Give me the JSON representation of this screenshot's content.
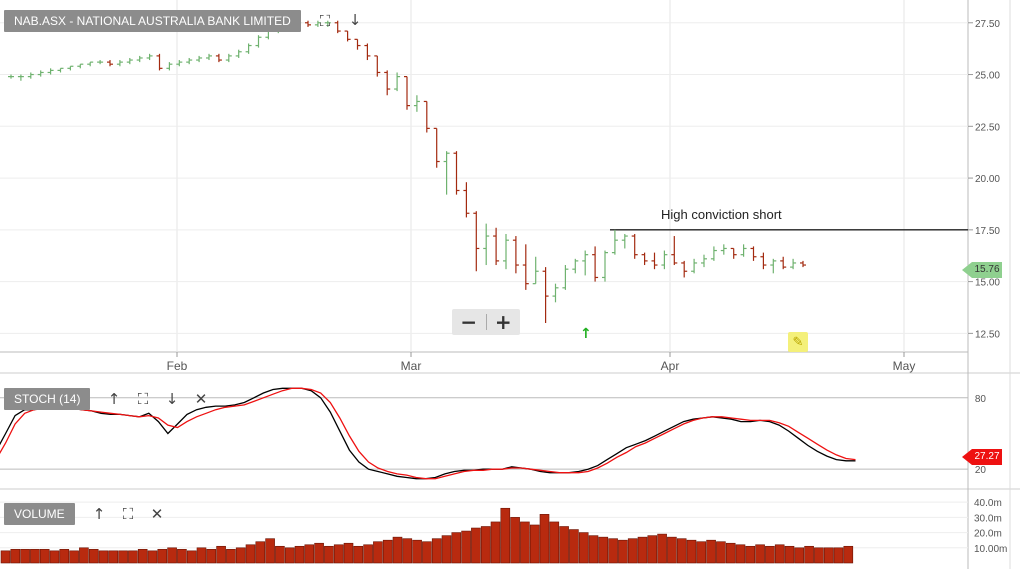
{
  "main_panel": {
    "title": "NAB.ASX - NATIONAL AUSTRALIA BANK LIMITED",
    "annotation": "High conviction short",
    "last_price_label": "15.76",
    "icons": {
      "fullscreen": "fullscreen-icon",
      "move_down": "arrow-down-icon",
      "zoom_out": "minus-icon",
      "zoom_in": "plus-icon",
      "draw": "pencil-icon",
      "signal": "arrow-up-icon"
    }
  },
  "stoch_panel": {
    "title": "STOCH (14)",
    "last_value_label": "27.27",
    "icons": {
      "move_up": "arrow-up-icon",
      "fullscreen": "fullscreen-icon",
      "move_down": "arrow-down-icon",
      "close": "close-icon"
    }
  },
  "volume_panel": {
    "title": "VOLUME",
    "icons": {
      "move_up": "arrow-up-icon",
      "fullscreen": "fullscreen-icon",
      "close": "close-icon"
    }
  },
  "colors": {
    "up": "#6fb26f",
    "down": "#a32a10",
    "stoch_k": "#000000",
    "stoch_d": "#ee1111",
    "volume": "#b82a0f",
    "label_bg": "#8c8c8c"
  },
  "chart_data": [
    {
      "type": "ohlc",
      "title": "NAB.ASX - NATIONAL AUSTRALIA BANK LIMITED",
      "x_ticks": [
        "Feb",
        "Mar",
        "Apr",
        "May"
      ],
      "y_ticks": [
        "27.50",
        "25.00",
        "22.50",
        "20.00",
        "17.50",
        "15.00",
        "12.50"
      ],
      "ylim": [
        11.6,
        28.6
      ],
      "horizontal_line": {
        "value": 17.5,
        "label": "High conviction short"
      },
      "last_value": 15.76,
      "bars": [
        {
          "o": 24.9,
          "h": 25.0,
          "l": 24.8,
          "c": 24.9
        },
        {
          "o": 24.9,
          "h": 25.0,
          "l": 24.7,
          "c": 24.9
        },
        {
          "o": 24.9,
          "h": 25.1,
          "l": 24.8,
          "c": 25.0
        },
        {
          "o": 25.0,
          "h": 25.2,
          "l": 24.9,
          "c": 25.1
        },
        {
          "o": 25.1,
          "h": 25.3,
          "l": 25.0,
          "c": 25.2
        },
        {
          "o": 25.2,
          "h": 25.3,
          "l": 25.1,
          "c": 25.3
        },
        {
          "o": 25.3,
          "h": 25.4,
          "l": 25.2,
          "c": 25.4
        },
        {
          "o": 25.4,
          "h": 25.5,
          "l": 25.3,
          "c": 25.5
        },
        {
          "o": 25.5,
          "h": 25.6,
          "l": 25.4,
          "c": 25.6
        },
        {
          "o": 25.6,
          "h": 25.7,
          "l": 25.5,
          "c": 25.6
        },
        {
          "o": 25.6,
          "h": 25.7,
          "l": 25.4,
          "c": 25.5
        },
        {
          "o": 25.5,
          "h": 25.7,
          "l": 25.4,
          "c": 25.6
        },
        {
          "o": 25.6,
          "h": 25.8,
          "l": 25.5,
          "c": 25.7
        },
        {
          "o": 25.7,
          "h": 25.9,
          "l": 25.6,
          "c": 25.8
        },
        {
          "o": 25.8,
          "h": 26.0,
          "l": 25.7,
          "c": 25.9
        },
        {
          "o": 25.9,
          "h": 26.0,
          "l": 25.2,
          "c": 25.3
        },
        {
          "o": 25.3,
          "h": 25.6,
          "l": 25.2,
          "c": 25.5
        },
        {
          "o": 25.5,
          "h": 25.7,
          "l": 25.4,
          "c": 25.6
        },
        {
          "o": 25.6,
          "h": 25.8,
          "l": 25.5,
          "c": 25.7
        },
        {
          "o": 25.7,
          "h": 25.9,
          "l": 25.6,
          "c": 25.8
        },
        {
          "o": 25.8,
          "h": 26.0,
          "l": 25.7,
          "c": 25.9
        },
        {
          "o": 25.9,
          "h": 26.0,
          "l": 25.6,
          "c": 25.7
        },
        {
          "o": 25.7,
          "h": 26.0,
          "l": 25.6,
          "c": 25.9
        },
        {
          "o": 25.9,
          "h": 26.2,
          "l": 25.8,
          "c": 26.1
        },
        {
          "o": 26.1,
          "h": 26.5,
          "l": 26.0,
          "c": 26.4
        },
        {
          "o": 26.4,
          "h": 26.9,
          "l": 26.3,
          "c": 26.8
        },
        {
          "o": 26.8,
          "h": 27.2,
          "l": 26.7,
          "c": 27.1
        },
        {
          "o": 27.1,
          "h": 27.4,
          "l": 27.0,
          "c": 27.3
        },
        {
          "o": 27.3,
          "h": 27.5,
          "l": 27.2,
          "c": 27.4
        },
        {
          "o": 27.4,
          "h": 27.6,
          "l": 27.3,
          "c": 27.5
        },
        {
          "o": 27.5,
          "h": 27.6,
          "l": 27.3,
          "c": 27.4
        },
        {
          "o": 27.4,
          "h": 27.6,
          "l": 27.3,
          "c": 27.5
        },
        {
          "o": 27.5,
          "h": 27.6,
          "l": 27.3,
          "c": 27.5
        },
        {
          "o": 27.5,
          "h": 27.6,
          "l": 27.0,
          "c": 27.1
        },
        {
          "o": 27.1,
          "h": 27.1,
          "l": 26.6,
          "c": 26.7
        },
        {
          "o": 26.7,
          "h": 26.7,
          "l": 26.2,
          "c": 26.4
        },
        {
          "o": 26.4,
          "h": 26.5,
          "l": 25.7,
          "c": 25.9
        },
        {
          "o": 25.9,
          "h": 25.9,
          "l": 24.9,
          "c": 25.1
        },
        {
          "o": 25.1,
          "h": 25.2,
          "l": 24.0,
          "c": 24.3
        },
        {
          "o": 24.3,
          "h": 25.1,
          "l": 24.2,
          "c": 24.9
        },
        {
          "o": 24.9,
          "h": 24.9,
          "l": 23.3,
          "c": 23.5
        },
        {
          "o": 23.5,
          "h": 24.0,
          "l": 23.2,
          "c": 23.7
        },
        {
          "o": 23.7,
          "h": 23.7,
          "l": 22.2,
          "c": 22.4
        },
        {
          "o": 22.4,
          "h": 22.4,
          "l": 20.5,
          "c": 20.8
        },
        {
          "o": 20.8,
          "h": 21.3,
          "l": 19.2,
          "c": 21.2
        },
        {
          "o": 21.2,
          "h": 21.3,
          "l": 19.2,
          "c": 19.4
        },
        {
          "o": 19.4,
          "h": 19.8,
          "l": 18.1,
          "c": 18.3
        },
        {
          "o": 18.3,
          "h": 18.4,
          "l": 15.5,
          "c": 16.6
        },
        {
          "o": 16.6,
          "h": 17.8,
          "l": 15.8,
          "c": 17.2
        },
        {
          "o": 17.2,
          "h": 17.6,
          "l": 15.8,
          "c": 16.0
        },
        {
          "o": 16.0,
          "h": 17.3,
          "l": 15.6,
          "c": 17.0
        },
        {
          "o": 17.0,
          "h": 17.2,
          "l": 15.4,
          "c": 15.8
        },
        {
          "o": 15.8,
          "h": 16.8,
          "l": 14.6,
          "c": 14.9
        },
        {
          "o": 14.9,
          "h": 16.2,
          "l": 14.9,
          "c": 15.5
        },
        {
          "o": 15.5,
          "h": 15.7,
          "l": 13.0,
          "c": 14.3
        },
        {
          "o": 14.3,
          "h": 14.9,
          "l": 14.0,
          "c": 14.7
        },
        {
          "o": 14.7,
          "h": 15.8,
          "l": 14.6,
          "c": 15.6
        },
        {
          "o": 15.6,
          "h": 16.1,
          "l": 15.4,
          "c": 16.0
        },
        {
          "o": 16.0,
          "h": 16.5,
          "l": 15.3,
          "c": 16.3
        },
        {
          "o": 16.3,
          "h": 16.7,
          "l": 15.0,
          "c": 15.2
        },
        {
          "o": 15.2,
          "h": 16.5,
          "l": 15.0,
          "c": 16.4
        },
        {
          "o": 16.4,
          "h": 17.5,
          "l": 16.3,
          "c": 17.0
        },
        {
          "o": 17.0,
          "h": 17.3,
          "l": 16.6,
          "c": 17.2
        },
        {
          "o": 17.2,
          "h": 17.3,
          "l": 16.1,
          "c": 16.3
        },
        {
          "o": 16.3,
          "h": 16.4,
          "l": 15.8,
          "c": 16.0
        },
        {
          "o": 16.0,
          "h": 16.4,
          "l": 15.6,
          "c": 15.8
        },
        {
          "o": 15.8,
          "h": 16.5,
          "l": 15.6,
          "c": 16.3
        },
        {
          "o": 16.3,
          "h": 17.2,
          "l": 15.8,
          "c": 15.9
        },
        {
          "o": 15.9,
          "h": 16.0,
          "l": 15.2,
          "c": 15.5
        },
        {
          "o": 15.5,
          "h": 16.1,
          "l": 15.4,
          "c": 15.9
        },
        {
          "o": 15.9,
          "h": 16.3,
          "l": 15.7,
          "c": 16.1
        },
        {
          "o": 16.1,
          "h": 16.7,
          "l": 16.0,
          "c": 16.5
        },
        {
          "o": 16.5,
          "h": 16.8,
          "l": 16.3,
          "c": 16.6
        },
        {
          "o": 16.6,
          "h": 16.6,
          "l": 16.1,
          "c": 16.3
        },
        {
          "o": 16.3,
          "h": 16.8,
          "l": 16.2,
          "c": 16.6
        },
        {
          "o": 16.6,
          "h": 16.7,
          "l": 16.0,
          "c": 16.2
        },
        {
          "o": 16.2,
          "h": 16.4,
          "l": 15.6,
          "c": 15.8
        },
        {
          "o": 15.8,
          "h": 16.1,
          "l": 15.4,
          "c": 16.0
        },
        {
          "o": 16.0,
          "h": 16.2,
          "l": 15.6,
          "c": 15.7
        },
        {
          "o": 15.7,
          "h": 16.1,
          "l": 15.6,
          "c": 15.9
        },
        {
          "o": 15.9,
          "h": 16.0,
          "l": 15.7,
          "c": 15.8
        }
      ]
    },
    {
      "type": "line",
      "title": "STOCH (14)",
      "y_ticks": [
        "80",
        "20"
      ],
      "ylim": [
        5,
        100
      ],
      "last_value": 27.27,
      "series": [
        {
          "values": [
            35,
            50,
            65,
            70,
            70,
            72,
            72,
            72,
            71,
            70,
            69,
            67,
            66,
            66,
            65,
            64,
            67,
            60,
            50,
            58,
            66,
            70,
            72,
            73,
            73,
            74,
            76,
            80,
            84,
            87,
            88,
            88,
            88,
            86,
            80,
            68,
            52,
            36,
            26,
            20,
            18,
            16,
            14,
            13,
            12,
            12,
            13,
            16,
            18,
            19,
            19,
            20,
            20,
            20,
            22,
            21,
            20,
            18,
            17,
            17,
            17,
            18,
            20,
            23,
            28,
            33,
            38,
            41,
            44,
            48,
            52,
            56,
            60,
            62,
            63,
            64,
            63,
            62,
            60,
            60,
            61,
            60,
            57,
            52,
            46,
            40,
            35,
            31,
            28,
            27,
            27
          ]
        },
        {
          "values": [
            28,
            42,
            58,
            67,
            70,
            71,
            72,
            72,
            71,
            70,
            69,
            68,
            67,
            66,
            65,
            64,
            65,
            63,
            57,
            55,
            60,
            64,
            67,
            70,
            72,
            73,
            74,
            77,
            80,
            83,
            86,
            88,
            88,
            87,
            84,
            76,
            63,
            48,
            35,
            26,
            21,
            18,
            16,
            15,
            13,
            12,
            12,
            14,
            16,
            18,
            19,
            19,
            20,
            20,
            21,
            21,
            20,
            19,
            18,
            17,
            17,
            17,
            18,
            21,
            25,
            30,
            34,
            39,
            42,
            46,
            50,
            54,
            58,
            61,
            63,
            64,
            64,
            63,
            62,
            61,
            61,
            61,
            59,
            56,
            51,
            46,
            41,
            36,
            32,
            29,
            28
          ]
        }
      ]
    },
    {
      "type": "bar",
      "title": "VOLUME",
      "y_ticks": [
        "40.0m",
        "30.0m",
        "20.0m",
        "10.00m"
      ],
      "ylim": [
        0,
        48
      ],
      "values": [
        8,
        9,
        9,
        9,
        9,
        8,
        9,
        8,
        10,
        9,
        8,
        8,
        8,
        8,
        9,
        8,
        9,
        10,
        9,
        8,
        10,
        9,
        11,
        9,
        10,
        12,
        14,
        16,
        11,
        10,
        11,
        12,
        13,
        11,
        12,
        13,
        11,
        12,
        14,
        15,
        17,
        16,
        15,
        14,
        16,
        18,
        20,
        21,
        23,
        24,
        27,
        36,
        30,
        27,
        25,
        32,
        27,
        24,
        22,
        20,
        18,
        17,
        16,
        15,
        16,
        17,
        18,
        19,
        17,
        16,
        15,
        14,
        15,
        14,
        13,
        12,
        11,
        12,
        11,
        12,
        11,
        10,
        11,
        10,
        10,
        10,
        11
      ]
    }
  ]
}
